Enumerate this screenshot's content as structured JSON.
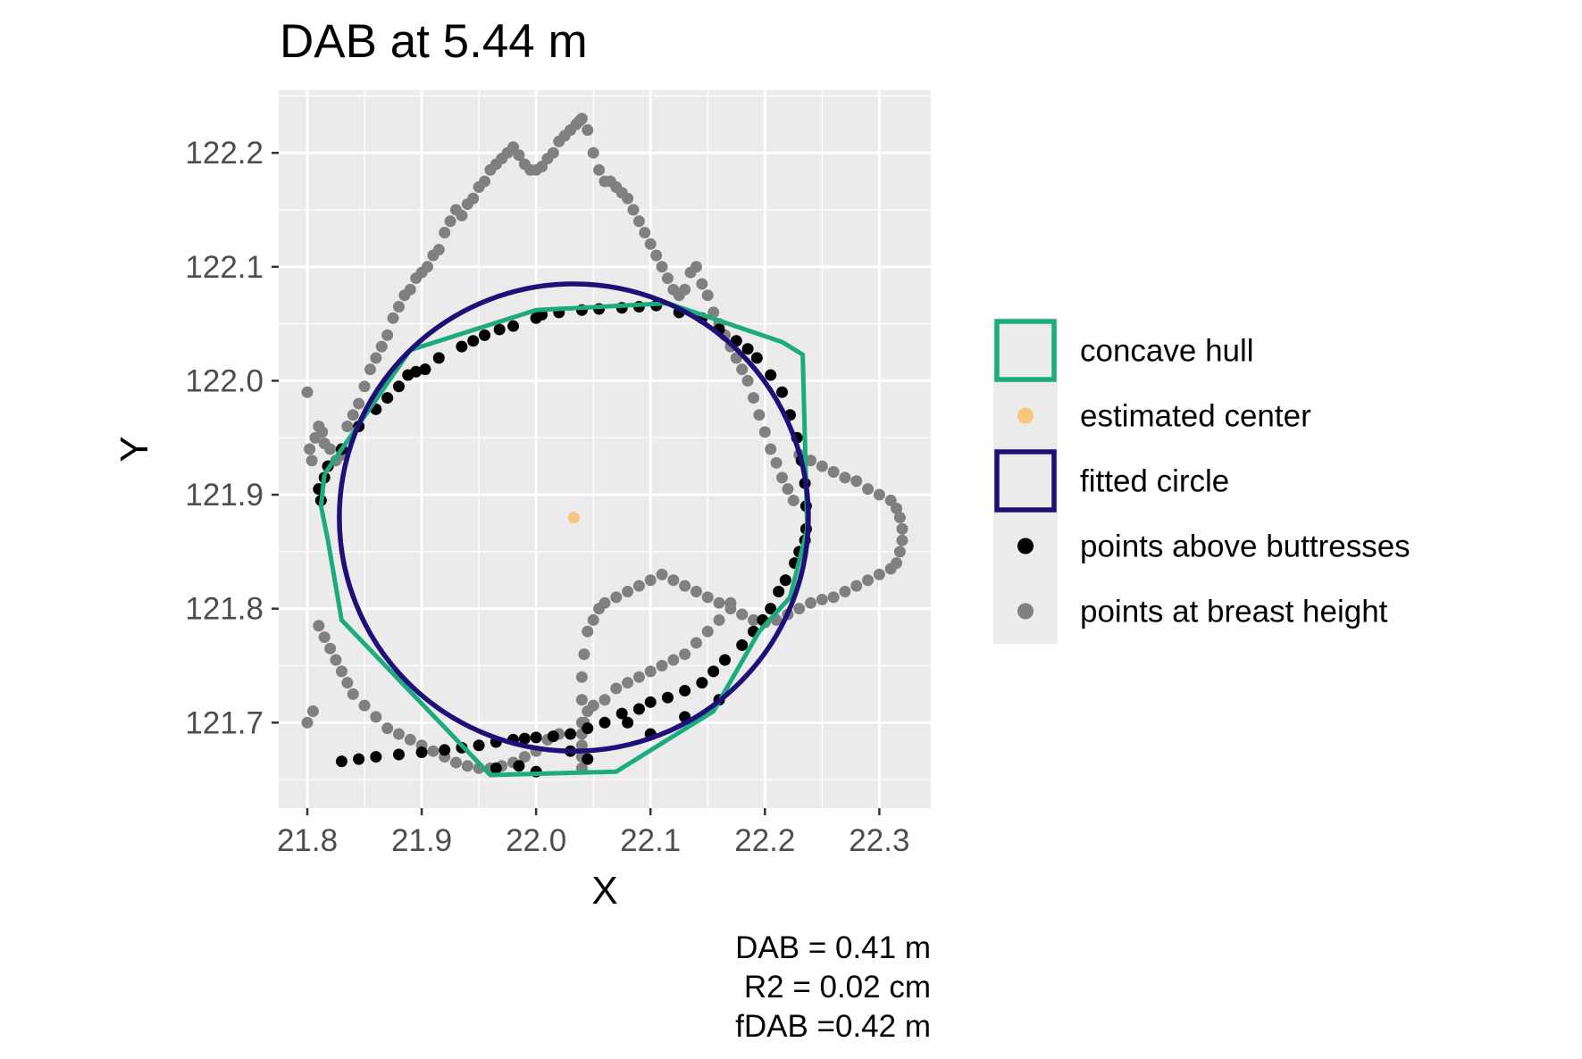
{
  "chart_data": {
    "type": "scatter",
    "title": "DAB at 5.44 m",
    "xlabel": "X",
    "ylabel": "Y",
    "xlim": [
      21.775,
      22.345
    ],
    "ylim": [
      121.625,
      122.255
    ],
    "x_ticks": [
      "21.8",
      "21.9",
      "22.0",
      "22.1",
      "22.2",
      "22.3"
    ],
    "y_ticks": [
      "121.7",
      "121.8",
      "121.9",
      "122.0",
      "122.1",
      "122.2"
    ],
    "grid": true,
    "legend_position": "right",
    "legend": [
      {
        "label": "concave hull",
        "kind": "hull",
        "color": "#1bab7f"
      },
      {
        "label": "estimated center",
        "kind": "point",
        "color": "#f8c77e"
      },
      {
        "label": "fitted circle",
        "kind": "circle",
        "color": "#1f0f78"
      },
      {
        "label": "points above buttresses",
        "kind": "point",
        "color": "#000000"
      },
      {
        "label": "points at breast height",
        "kind": "point",
        "color": "#808080"
      }
    ],
    "caption": [
      "DAB = 0.41 m",
      "R2 = 0.02 cm",
      "fDAB =0.42 m"
    ],
    "estimated_center": {
      "x": 22.033,
      "y": 121.88
    },
    "fitted_circle": {
      "cx": 22.033,
      "cy": 121.88,
      "r": 0.205
    },
    "concave_hull": {
      "x": [
        21.815,
        21.89,
        22.0,
        22.115,
        22.215,
        22.233,
        22.237,
        22.222,
        22.195,
        22.155,
        22.07,
        21.96,
        21.83,
        21.818,
        21.812,
        21.815
      ],
      "y": [
        121.918,
        122.027,
        122.062,
        122.068,
        122.034,
        122.023,
        121.87,
        121.81,
        121.78,
        121.71,
        121.657,
        121.654,
        121.79,
        121.86,
        121.89,
        121.918
      ]
    },
    "points_above_buttresses": {
      "x": [
        21.815,
        21.818,
        21.83,
        21.845,
        21.86,
        21.87,
        21.88,
        21.888,
        21.895,
        21.903,
        21.915,
        21.935,
        21.945,
        21.955,
        21.968,
        21.98,
        22.0,
        22.005,
        22.02,
        22.04,
        22.055,
        22.075,
        22.09,
        22.105,
        22.125,
        22.145,
        22.16,
        22.175,
        22.185,
        22.193,
        22.205,
        22.215,
        22.222,
        22.228,
        22.232,
        22.235,
        22.236,
        22.236,
        22.235,
        22.23,
        22.226,
        22.218,
        22.212,
        22.205,
        22.198,
        22.19,
        22.18,
        22.165,
        22.155,
        22.145,
        22.13,
        22.115,
        22.1,
        22.09,
        22.075,
        22.06,
        22.045,
        22.03,
        22.015,
        22.0,
        21.99,
        21.98,
        21.965,
        21.95,
        21.935,
        21.92,
        21.9,
        21.88,
        21.86,
        21.845,
        21.83,
        21.812,
        21.81,
        21.965,
        21.985,
        22.0,
        22.03,
        22.045,
        22.08,
        22.1,
        22.13,
        22.16
      ],
      "y": [
        121.915,
        121.925,
        121.94,
        121.96,
        121.975,
        121.985,
        121.995,
        122.005,
        122.008,
        122.01,
        122.02,
        122.03,
        122.035,
        122.04,
        122.045,
        122.048,
        122.055,
        122.058,
        122.06,
        122.062,
        122.063,
        122.064,
        122.065,
        122.066,
        122.06,
        122.055,
        122.045,
        122.035,
        122.028,
        122.02,
        122.005,
        121.99,
        121.97,
        121.95,
        121.93,
        121.91,
        121.89,
        121.87,
        121.86,
        121.85,
        121.84,
        121.825,
        121.815,
        121.8,
        121.79,
        121.78,
        121.768,
        121.755,
        121.745,
        121.735,
        121.728,
        121.722,
        121.718,
        121.712,
        121.708,
        121.7,
        121.695,
        121.69,
        121.688,
        121.687,
        121.686,
        121.685,
        121.683,
        121.68,
        121.678,
        121.676,
        121.674,
        121.672,
        121.67,
        121.668,
        121.666,
        121.895,
        121.905,
        121.66,
        121.662,
        121.657,
        121.675,
        121.668,
        121.7,
        121.69,
        121.705,
        121.72
      ]
    },
    "points_at_breast_height": {
      "x": [
        21.8,
        21.802,
        21.804,
        21.807,
        21.81,
        21.813,
        21.815,
        21.82,
        21.825,
        21.83,
        21.835,
        21.84,
        21.845,
        21.85,
        21.855,
        21.86,
        21.865,
        21.87,
        21.875,
        21.88,
        21.885,
        21.89,
        21.895,
        21.9,
        21.905,
        21.91,
        21.915,
        21.92,
        21.925,
        21.93,
        21.935,
        21.94,
        21.945,
        21.95,
        21.955,
        21.96,
        21.965,
        21.97,
        21.975,
        21.98,
        21.985,
        21.99,
        21.995,
        22.0,
        22.005,
        22.01,
        22.015,
        22.02,
        22.025,
        22.03,
        22.035,
        22.038,
        22.04,
        22.045,
        22.05,
        22.055,
        22.06,
        22.065,
        22.07,
        22.075,
        22.08,
        22.085,
        22.09,
        22.095,
        22.1,
        22.105,
        22.11,
        22.115,
        22.12,
        22.125,
        22.13,
        22.135,
        22.14,
        22.145,
        22.15,
        22.155,
        22.16,
        22.165,
        22.17,
        22.175,
        22.18,
        22.185,
        22.19,
        22.195,
        22.2,
        22.205,
        22.21,
        22.215,
        22.22,
        22.225,
        22.23,
        22.24,
        22.25,
        22.26,
        22.27,
        22.28,
        22.29,
        22.3,
        22.31,
        22.315,
        22.318,
        22.32,
        22.32,
        22.318,
        22.315,
        22.31,
        22.3,
        22.29,
        22.28,
        22.27,
        22.26,
        22.25,
        22.24,
        22.23,
        22.22,
        22.21,
        22.2,
        22.19,
        22.18,
        22.17,
        22.16,
        22.15,
        22.14,
        22.13,
        22.12,
        22.11,
        22.1,
        22.09,
        22.08,
        22.07,
        22.06,
        22.055,
        22.05,
        22.045,
        22.042,
        22.04,
        22.04,
        22.04,
        22.04,
        22.04,
        22.04,
        22.04,
        22.042,
        22.045,
        22.05,
        22.06,
        22.07,
        22.08,
        22.09,
        22.1,
        22.11,
        22.12,
        22.13,
        22.14,
        22.15,
        22.16,
        22.17,
        22.18,
        21.81,
        21.815,
        21.82,
        21.825,
        21.83,
        21.835,
        21.84,
        21.85,
        21.86,
        21.87,
        21.88,
        21.89,
        21.9,
        21.91,
        21.92,
        21.93,
        21.94,
        21.95,
        21.96,
        21.97,
        21.98,
        21.99,
        22.0,
        22.01,
        22.02,
        21.8,
        21.805
      ],
      "y": [
        121.99,
        121.94,
        121.93,
        121.95,
        121.96,
        121.955,
        121.945,
        121.94,
        121.93,
        121.935,
        121.96,
        121.97,
        121.98,
        121.995,
        122.01,
        122.02,
        122.03,
        122.04,
        122.055,
        122.065,
        122.075,
        122.08,
        122.09,
        122.095,
        122.1,
        122.11,
        122.115,
        122.13,
        122.14,
        122.15,
        122.145,
        122.155,
        122.16,
        122.17,
        122.175,
        122.185,
        122.19,
        122.195,
        122.2,
        122.205,
        122.198,
        122.19,
        122.185,
        122.185,
        122.188,
        122.195,
        122.2,
        122.21,
        122.215,
        122.22,
        122.225,
        122.228,
        122.23,
        122.22,
        122.2,
        122.185,
        122.175,
        122.175,
        122.17,
        122.165,
        122.16,
        122.15,
        122.14,
        122.13,
        122.12,
        122.11,
        122.1,
        122.09,
        122.08,
        122.075,
        122.08,
        122.095,
        122.1,
        122.085,
        122.075,
        122.06,
        122.05,
        122.04,
        122.03,
        122.02,
        122.01,
        122.0,
        121.985,
        121.97,
        121.955,
        121.94,
        121.928,
        121.915,
        121.905,
        121.895,
        121.935,
        121.93,
        121.925,
        121.92,
        121.915,
        121.912,
        121.905,
        121.9,
        121.895,
        121.888,
        121.88,
        121.87,
        121.86,
        121.85,
        121.84,
        121.835,
        121.83,
        121.825,
        121.82,
        121.815,
        121.81,
        121.808,
        121.805,
        121.8,
        121.795,
        121.79,
        121.788,
        121.79,
        121.795,
        121.8,
        121.805,
        121.81,
        121.815,
        121.82,
        121.825,
        121.83,
        121.825,
        121.82,
        121.815,
        121.81,
        121.805,
        121.8,
        121.79,
        121.78,
        121.76,
        121.74,
        121.72,
        121.7,
        121.69,
        121.68,
        121.67,
        121.66,
        121.7,
        121.71,
        121.715,
        121.72,
        121.73,
        121.735,
        121.74,
        121.745,
        121.75,
        121.755,
        121.76,
        121.77,
        121.78,
        121.79,
        121.805,
        121.795,
        121.785,
        121.775,
        121.765,
        121.755,
        121.745,
        121.735,
        121.725,
        121.715,
        121.705,
        121.695,
        121.69,
        121.685,
        121.68,
        121.675,
        121.67,
        121.665,
        121.662,
        121.66,
        121.66,
        121.662,
        121.665,
        121.67,
        121.675,
        121.685,
        121.69,
        121.7,
        121.71
      ]
    }
  }
}
